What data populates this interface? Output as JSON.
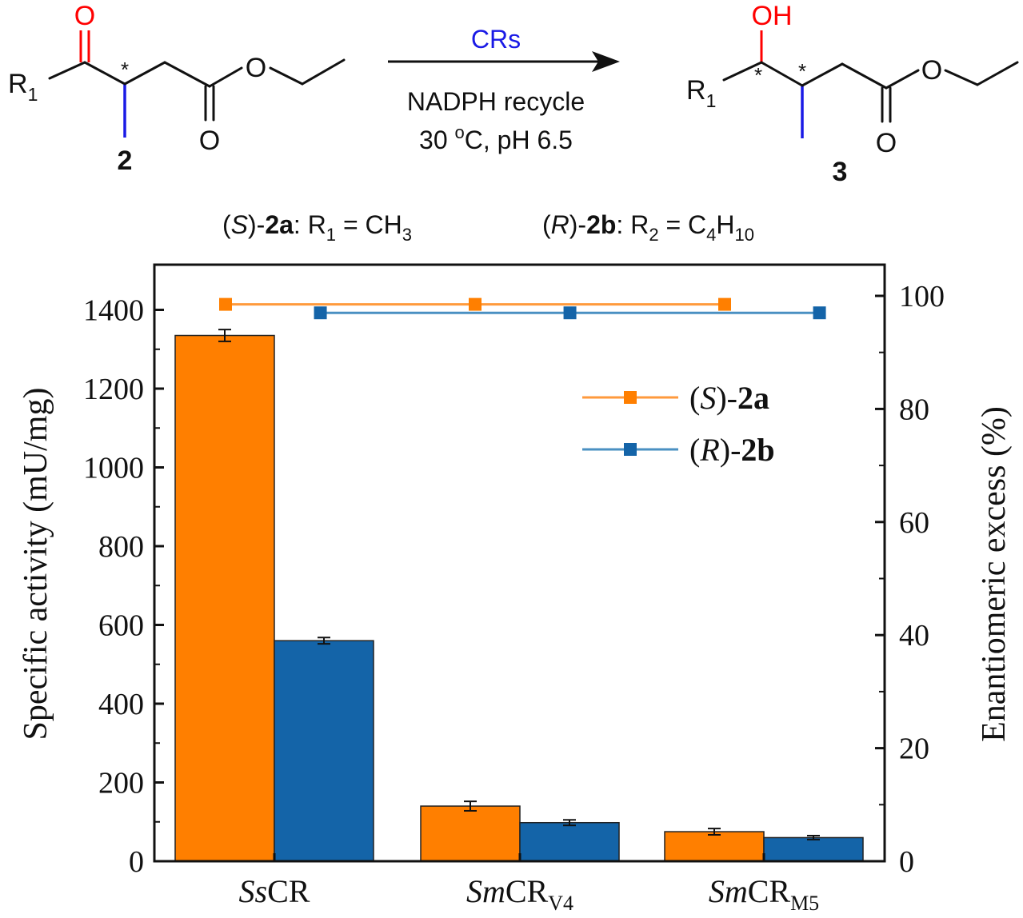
{
  "scheme": {
    "reactant": {
      "ketone_o": "O",
      "r_main": "R",
      "r_sub": "1",
      "stereo_mark": "*",
      "ester_o": "O",
      "carbonyl_o": "O",
      "label": "2"
    },
    "arrow": {
      "top_text": "CRs",
      "bottom_line1": "NADPH recycle",
      "bottom_line2_pre": "30 ",
      "bottom_line2_sup": "o",
      "bottom_line2_post": "C, pH 6.5"
    },
    "product": {
      "hydroxyl": "OH",
      "r_main": "R",
      "r_sub": "1",
      "stereo_mark1": "*",
      "stereo_mark2": "*",
      "ester_o": "O",
      "carbonyl_o": "O",
      "label": "3"
    },
    "substrates": {
      "a": {
        "paren_open": "(",
        "config": "S",
        "paren_close": ")-",
        "id": "2a",
        "sep": ": R",
        "r_sub": "1",
        "eq": " = CH",
        "formula_sub": "3"
      },
      "b": {
        "paren_open": "(",
        "config": "R",
        "paren_close": ")-",
        "id": "2b",
        "sep": ": R",
        "r_sub": "2",
        "eq": " = C",
        "formula_mid_sub": "4",
        "formula_mid": "H",
        "formula_sub": "10"
      }
    }
  },
  "colors": {
    "orange": "#FF7F00",
    "blue": "#1464A8",
    "line_orange": "#FF9A3C",
    "line_blue": "#4A90C2",
    "red": "#FF0000",
    "scheme_blue": "#1A1AE6",
    "ink": "#111111"
  },
  "chart_data": {
    "type": "bar",
    "categories": [
      {
        "italic": "Ss",
        "main": "CR",
        "sub": ""
      },
      {
        "italic": "Sm",
        "main": "CR",
        "sub": "V4"
      },
      {
        "italic": "Sm",
        "main": "CR",
        "sub": "M5"
      }
    ],
    "series": [
      {
        "name": "(S)-2a",
        "activity": [
          1335,
          140,
          75
        ],
        "activity_err": [
          15,
          12,
          8
        ],
        "ee_x": [
          0,
          1,
          2
        ],
        "ee": [
          98.5,
          98.5,
          98.5
        ]
      },
      {
        "name": "(R)-2b",
        "activity": [
          560,
          98,
          60
        ],
        "activity_err": [
          8,
          7,
          5
        ],
        "ee_x": [
          0.38,
          1.38,
          2.38
        ],
        "ee": [
          97,
          97,
          97
        ]
      }
    ],
    "legend": [
      {
        "open": "(",
        "config": "S",
        "close": ")-",
        "id": "2a"
      },
      {
        "open": "(",
        "config": "R",
        "close": ")-",
        "id": "2b"
      }
    ],
    "legend_position": "top-right",
    "ylabel_left": "Specific activity (mU/mg)",
    "ylabel_right": "Enantiomeric excess (%)",
    "ylim_left": [
      0,
      1500
    ],
    "yticks_left": [
      0,
      200,
      400,
      600,
      800,
      1000,
      1200,
      1400
    ],
    "ylim_right": [
      0,
      105
    ],
    "yticks_right": [
      0,
      20,
      40,
      60,
      80,
      100
    ],
    "grid": false
  }
}
